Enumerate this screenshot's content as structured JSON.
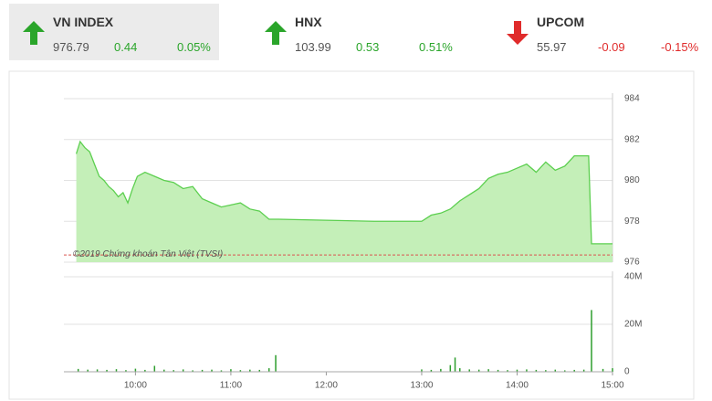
{
  "indices": [
    {
      "name": "VN INDEX",
      "value": "976.79",
      "change": "0.44",
      "percent": "0.05%",
      "trend": "up"
    },
    {
      "name": "HNX",
      "value": "103.99",
      "change": "0.53",
      "percent": "0.51%",
      "trend": "up"
    },
    {
      "name": "UPCOM",
      "value": "55.97",
      "change": "-0.09",
      "percent": "-0.15%",
      "trend": "down"
    }
  ],
  "chart_data": [
    {
      "type": "area",
      "watermark": "©2019 Chứng khoán Tân Việt (TVSI)",
      "color": "#5ccf4f",
      "fill": "#c4efb8",
      "reference_line": 976.35,
      "reference_color": "#d9534f",
      "xlim": [
        9.25,
        15
      ],
      "ylim": [
        976,
        984
      ],
      "yticks": [
        976,
        978,
        980,
        982,
        984
      ],
      "grid": true,
      "series": [
        {
          "name": "VN INDEX",
          "x": [
            9.38,
            9.42,
            9.47,
            9.52,
            9.57,
            9.62,
            9.67,
            9.72,
            9.77,
            9.82,
            9.87,
            9.92,
            9.97,
            10.02,
            10.1,
            10.2,
            10.3,
            10.4,
            10.5,
            10.6,
            10.7,
            10.8,
            10.9,
            11.0,
            11.1,
            11.2,
            11.3,
            11.4,
            11.5,
            12.0,
            12.5,
            13.0,
            13.1,
            13.2,
            13.3,
            13.4,
            13.5,
            13.6,
            13.7,
            13.8,
            13.9,
            14.0,
            14.1,
            14.2,
            14.3,
            14.4,
            14.5,
            14.6,
            14.7,
            14.75,
            14.78,
            15.0
          ],
          "values": [
            981.3,
            981.9,
            981.6,
            981.4,
            980.8,
            980.2,
            980.0,
            979.7,
            979.5,
            979.2,
            979.4,
            978.9,
            979.6,
            980.2,
            980.4,
            980.2,
            980.0,
            979.9,
            979.6,
            979.7,
            979.1,
            978.9,
            978.7,
            978.8,
            978.9,
            978.6,
            978.5,
            978.1,
            978.1,
            978.05,
            978.0,
            978.0,
            978.3,
            978.4,
            978.6,
            979.0,
            979.3,
            979.6,
            980.1,
            980.3,
            980.4,
            980.6,
            980.8,
            980.4,
            980.9,
            980.5,
            980.7,
            981.2,
            981.2,
            981.2,
            976.9,
            976.9
          ]
        }
      ]
    },
    {
      "type": "bar",
      "color": "#2e9e2e",
      "xlim": [
        9.25,
        15
      ],
      "ylim": [
        0,
        40
      ],
      "yticks": [
        {
          "value": 0,
          "label": "0"
        },
        {
          "value": 20,
          "label": "20M"
        },
        {
          "value": 40,
          "label": "40M"
        }
      ],
      "grid": true,
      "xticks": [
        {
          "value": 10,
          "label": "10:00"
        },
        {
          "value": 11,
          "label": "11:00"
        },
        {
          "value": 12,
          "label": "12:00"
        },
        {
          "value": 13,
          "label": "13:00"
        },
        {
          "value": 14,
          "label": "14:00"
        },
        {
          "value": 15,
          "label": "15:00"
        }
      ],
      "x": [
        9.4,
        9.5,
        9.6,
        9.7,
        9.8,
        9.9,
        10.0,
        10.1,
        10.2,
        10.3,
        10.4,
        10.5,
        10.6,
        10.7,
        10.8,
        10.9,
        11.0,
        11.1,
        11.2,
        11.3,
        11.4,
        11.47,
        13.0,
        13.1,
        13.2,
        13.3,
        13.35,
        13.4,
        13.5,
        13.6,
        13.7,
        13.8,
        13.9,
        14.0,
        14.1,
        14.2,
        14.3,
        14.4,
        14.5,
        14.6,
        14.7,
        14.78,
        14.9,
        15.0
      ],
      "values": [
        1.2,
        0.9,
        1.0,
        0.8,
        1.1,
        0.7,
        1.3,
        0.8,
        2.5,
        0.9,
        0.7,
        1.0,
        0.6,
        0.8,
        0.9,
        0.6,
        1.1,
        0.7,
        0.9,
        0.8,
        1.5,
        7.0,
        1.0,
        0.8,
        1.2,
        2.8,
        6.0,
        1.5,
        1.0,
        0.9,
        1.1,
        0.8,
        0.7,
        0.9,
        1.0,
        0.8,
        0.7,
        0.9,
        0.6,
        0.8,
        0.9,
        26.0,
        1.2,
        1.5
      ]
    }
  ]
}
